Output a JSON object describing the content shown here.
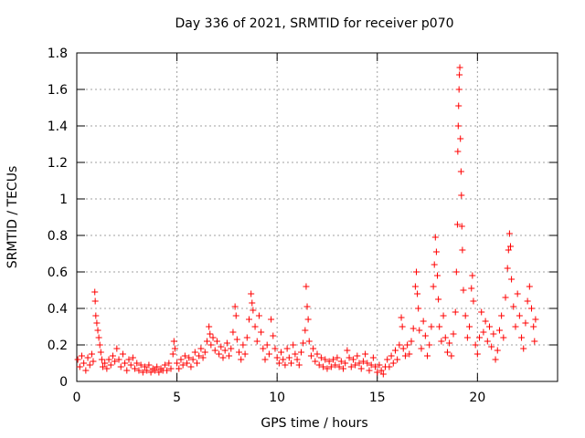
{
  "chart_data": {
    "type": "scatter",
    "title": "Day 336 of 2021, SRMTID for receiver p070",
    "xlabel": "GPS time / hours",
    "ylabel": "SRMTID / TECUs",
    "xlim": [
      0,
      24
    ],
    "ylim": [
      0,
      1.8
    ],
    "xticks": [
      0,
      5,
      10,
      15,
      20
    ],
    "yticks": [
      0,
      0.2,
      0.4,
      0.6,
      0.8,
      1,
      1.2,
      1.4,
      1.6,
      1.8
    ],
    "ytick_labels": [
      "0",
      "0.2",
      "0.4",
      "0.6",
      "0.8",
      "1",
      "1.2",
      "1.4",
      "1.6",
      "1.8"
    ],
    "grid": true,
    "marker": "+",
    "color": "#ff0000",
    "series": [
      {
        "name": "SRMTID",
        "points": [
          [
            0.05,
            0.12
          ],
          [
            0.15,
            0.08
          ],
          [
            0.25,
            0.14
          ],
          [
            0.35,
            0.1
          ],
          [
            0.45,
            0.06
          ],
          [
            0.55,
            0.13
          ],
          [
            0.65,
            0.09
          ],
          [
            0.75,
            0.15
          ],
          [
            0.82,
            0.11
          ],
          [
            0.9,
            0.49
          ],
          [
            0.92,
            0.44
          ],
          [
            0.95,
            0.36
          ],
          [
            1.0,
            0.32
          ],
          [
            1.05,
            0.28
          ],
          [
            1.1,
            0.24
          ],
          [
            1.15,
            0.2
          ],
          [
            1.2,
            0.16
          ],
          [
            1.25,
            0.12
          ],
          [
            1.3,
            0.08
          ],
          [
            1.4,
            0.1
          ],
          [
            1.5,
            0.07
          ],
          [
            1.6,
            0.12
          ],
          [
            1.7,
            0.09
          ],
          [
            1.8,
            0.14
          ],
          [
            1.9,
            0.11
          ],
          [
            2.0,
            0.18
          ],
          [
            2.1,
            0.12
          ],
          [
            2.2,
            0.08
          ],
          [
            2.3,
            0.15
          ],
          [
            2.4,
            0.1
          ],
          [
            2.5,
            0.06
          ],
          [
            2.6,
            0.12
          ],
          [
            2.7,
            0.09
          ],
          [
            2.8,
            0.13
          ],
          [
            2.9,
            0.07
          ],
          [
            3.0,
            0.1
          ],
          [
            3.1,
            0.06
          ],
          [
            3.2,
            0.09
          ],
          [
            3.3,
            0.05
          ],
          [
            3.4,
            0.08
          ],
          [
            3.5,
            0.06
          ],
          [
            3.6,
            0.09
          ],
          [
            3.7,
            0.05
          ],
          [
            3.8,
            0.07
          ],
          [
            3.9,
            0.06
          ],
          [
            4.0,
            0.08
          ],
          [
            4.1,
            0.05
          ],
          [
            4.2,
            0.07
          ],
          [
            4.3,
            0.06
          ],
          [
            4.4,
            0.09
          ],
          [
            4.5,
            0.06
          ],
          [
            4.6,
            0.1
          ],
          [
            4.7,
            0.07
          ],
          [
            4.8,
            0.15
          ],
          [
            4.85,
            0.22
          ],
          [
            4.9,
            0.18
          ],
          [
            5.0,
            0.1
          ],
          [
            5.1,
            0.07
          ],
          [
            5.2,
            0.12
          ],
          [
            5.3,
            0.09
          ],
          [
            5.4,
            0.14
          ],
          [
            5.5,
            0.1
          ],
          [
            5.6,
            0.13
          ],
          [
            5.7,
            0.08
          ],
          [
            5.8,
            0.12
          ],
          [
            5.9,
            0.16
          ],
          [
            6.0,
            0.1
          ],
          [
            6.1,
            0.14
          ],
          [
            6.2,
            0.18
          ],
          [
            6.3,
            0.13
          ],
          [
            6.4,
            0.16
          ],
          [
            6.5,
            0.22
          ],
          [
            6.6,
            0.3
          ],
          [
            6.65,
            0.26
          ],
          [
            6.7,
            0.2
          ],
          [
            6.8,
            0.24
          ],
          [
            6.9,
            0.17
          ],
          [
            7.0,
            0.22
          ],
          [
            7.1,
            0.15
          ],
          [
            7.2,
            0.19
          ],
          [
            7.3,
            0.13
          ],
          [
            7.4,
            0.17
          ],
          [
            7.5,
            0.21
          ],
          [
            7.6,
            0.14
          ],
          [
            7.7,
            0.18
          ],
          [
            7.8,
            0.27
          ],
          [
            7.9,
            0.41
          ],
          [
            7.95,
            0.36
          ],
          [
            8.0,
            0.23
          ],
          [
            8.1,
            0.16
          ],
          [
            8.2,
            0.12
          ],
          [
            8.3,
            0.2
          ],
          [
            8.4,
            0.15
          ],
          [
            8.5,
            0.24
          ],
          [
            8.6,
            0.34
          ],
          [
            8.7,
            0.48
          ],
          [
            8.75,
            0.43
          ],
          [
            8.8,
            0.39
          ],
          [
            8.9,
            0.3
          ],
          [
            9.0,
            0.22
          ],
          [
            9.1,
            0.36
          ],
          [
            9.2,
            0.27
          ],
          [
            9.3,
            0.18
          ],
          [
            9.4,
            0.12
          ],
          [
            9.5,
            0.2
          ],
          [
            9.6,
            0.15
          ],
          [
            9.7,
            0.34
          ],
          [
            9.8,
            0.25
          ],
          [
            9.9,
            0.18
          ],
          [
            10.0,
            0.13
          ],
          [
            10.1,
            0.1
          ],
          [
            10.2,
            0.16
          ],
          [
            10.3,
            0.12
          ],
          [
            10.4,
            0.09
          ],
          [
            10.5,
            0.18
          ],
          [
            10.6,
            0.13
          ],
          [
            10.7,
            0.1
          ],
          [
            10.8,
            0.2
          ],
          [
            10.9,
            0.15
          ],
          [
            11.0,
            0.12
          ],
          [
            11.1,
            0.09
          ],
          [
            11.2,
            0.16
          ],
          [
            11.3,
            0.21
          ],
          [
            11.4,
            0.28
          ],
          [
            11.45,
            0.52
          ],
          [
            11.5,
            0.41
          ],
          [
            11.55,
            0.34
          ],
          [
            11.6,
            0.22
          ],
          [
            11.7,
            0.14
          ],
          [
            11.8,
            0.18
          ],
          [
            11.9,
            0.11
          ],
          [
            12.0,
            0.15
          ],
          [
            12.1,
            0.09
          ],
          [
            12.2,
            0.13
          ],
          [
            12.3,
            0.08
          ],
          [
            12.4,
            0.12
          ],
          [
            12.5,
            0.07
          ],
          [
            12.6,
            0.11
          ],
          [
            12.7,
            0.08
          ],
          [
            12.8,
            0.12
          ],
          [
            12.9,
            0.09
          ],
          [
            13.0,
            0.13
          ],
          [
            13.1,
            0.08
          ],
          [
            13.2,
            0.11
          ],
          [
            13.3,
            0.07
          ],
          [
            13.4,
            0.1
          ],
          [
            13.5,
            0.17
          ],
          [
            13.6,
            0.13
          ],
          [
            13.7,
            0.08
          ],
          [
            13.8,
            0.12
          ],
          [
            13.9,
            0.09
          ],
          [
            14.0,
            0.14
          ],
          [
            14.1,
            0.1
          ],
          [
            14.2,
            0.07
          ],
          [
            14.3,
            0.11
          ],
          [
            14.4,
            0.15
          ],
          [
            14.5,
            0.1
          ],
          [
            14.6,
            0.06
          ],
          [
            14.7,
            0.09
          ],
          [
            14.8,
            0.13
          ],
          [
            14.9,
            0.08
          ],
          [
            15.0,
            0.05
          ],
          [
            15.1,
            0.09
          ],
          [
            15.2,
            0.06
          ],
          [
            15.3,
            0.04
          ],
          [
            15.4,
            0.08
          ],
          [
            15.5,
            0.12
          ],
          [
            15.6,
            0.08
          ],
          [
            15.7,
            0.14
          ],
          [
            15.8,
            0.1
          ],
          [
            15.9,
            0.17
          ],
          [
            16.0,
            0.12
          ],
          [
            16.1,
            0.2
          ],
          [
            16.2,
            0.35
          ],
          [
            16.25,
            0.3
          ],
          [
            16.3,
            0.18
          ],
          [
            16.4,
            0.14
          ],
          [
            16.5,
            0.2
          ],
          [
            16.6,
            0.15
          ],
          [
            16.7,
            0.22
          ],
          [
            16.8,
            0.29
          ],
          [
            16.9,
            0.52
          ],
          [
            16.95,
            0.6
          ],
          [
            17.0,
            0.48
          ],
          [
            17.05,
            0.4
          ],
          [
            17.1,
            0.28
          ],
          [
            17.2,
            0.18
          ],
          [
            17.3,
            0.33
          ],
          [
            17.4,
            0.25
          ],
          [
            17.5,
            0.14
          ],
          [
            17.6,
            0.2
          ],
          [
            17.7,
            0.3
          ],
          [
            17.8,
            0.52
          ],
          [
            17.85,
            0.64
          ],
          [
            17.9,
            0.79
          ],
          [
            17.95,
            0.71
          ],
          [
            18.0,
            0.58
          ],
          [
            18.05,
            0.45
          ],
          [
            18.1,
            0.3
          ],
          [
            18.2,
            0.22
          ],
          [
            18.3,
            0.36
          ],
          [
            18.4,
            0.24
          ],
          [
            18.5,
            0.16
          ],
          [
            18.6,
            0.21
          ],
          [
            18.7,
            0.14
          ],
          [
            18.8,
            0.26
          ],
          [
            18.9,
            0.38
          ],
          [
            18.95,
            0.6
          ],
          [
            19.0,
            0.86
          ],
          [
            19.02,
            1.26
          ],
          [
            19.04,
            1.4
          ],
          [
            19.06,
            1.51
          ],
          [
            19.08,
            1.6
          ],
          [
            19.1,
            1.68
          ],
          [
            19.12,
            1.72
          ],
          [
            19.15,
            1.33
          ],
          [
            19.18,
            1.15
          ],
          [
            19.2,
            1.02
          ],
          [
            19.22,
            0.85
          ],
          [
            19.25,
            0.72
          ],
          [
            19.3,
            0.5
          ],
          [
            19.4,
            0.36
          ],
          [
            19.5,
            0.24
          ],
          [
            19.6,
            0.3
          ],
          [
            19.7,
            0.51
          ],
          [
            19.75,
            0.58
          ],
          [
            19.8,
            0.44
          ],
          [
            19.9,
            0.2
          ],
          [
            20.0,
            0.15
          ],
          [
            20.1,
            0.24
          ],
          [
            20.2,
            0.38
          ],
          [
            20.3,
            0.27
          ],
          [
            20.4,
            0.33
          ],
          [
            20.5,
            0.22
          ],
          [
            20.6,
            0.3
          ],
          [
            20.7,
            0.19
          ],
          [
            20.8,
            0.26
          ],
          [
            20.9,
            0.12
          ],
          [
            21.0,
            0.17
          ],
          [
            21.1,
            0.28
          ],
          [
            21.2,
            0.36
          ],
          [
            21.3,
            0.24
          ],
          [
            21.4,
            0.46
          ],
          [
            21.5,
            0.62
          ],
          [
            21.55,
            0.72
          ],
          [
            21.6,
            0.81
          ],
          [
            21.65,
            0.74
          ],
          [
            21.7,
            0.56
          ],
          [
            21.8,
            0.41
          ],
          [
            21.9,
            0.3
          ],
          [
            22.0,
            0.48
          ],
          [
            22.1,
            0.36
          ],
          [
            22.2,
            0.24
          ],
          [
            22.3,
            0.18
          ],
          [
            22.4,
            0.32
          ],
          [
            22.5,
            0.44
          ],
          [
            22.6,
            0.52
          ],
          [
            22.7,
            0.4
          ],
          [
            22.8,
            0.3
          ],
          [
            22.85,
            0.22
          ],
          [
            22.9,
            0.34
          ]
        ]
      }
    ]
  }
}
